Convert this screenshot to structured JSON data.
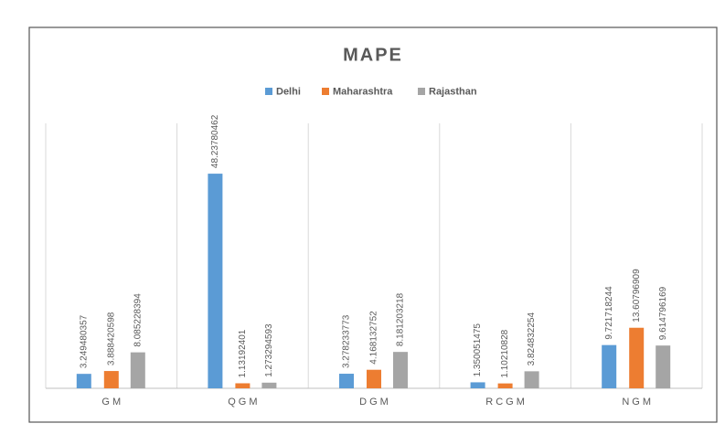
{
  "chart_data": {
    "type": "bar",
    "title": "MAPE",
    "categories": [
      "GM",
      "QGM",
      "DGM",
      "RCGM",
      "NGM"
    ],
    "series": [
      {
        "name": "Delhi",
        "color": "#5b9bd5",
        "values": [
          3.249480357,
          48.23780462,
          3.278233773,
          1.350051475,
          9.721718244
        ]
      },
      {
        "name": "Maharashtra",
        "color": "#ed7d31",
        "values": [
          3.888420598,
          1.13192401,
          4.168132752,
          1.10210828,
          13.60796909
        ]
      },
      {
        "name": "Rajasthan",
        "color": "#a5a5a5",
        "values": [
          8.085228394,
          1.273294593,
          8.181203218,
          3.824832254,
          9.614796169
        ]
      }
    ],
    "legend": "top",
    "grid": "vertical"
  }
}
